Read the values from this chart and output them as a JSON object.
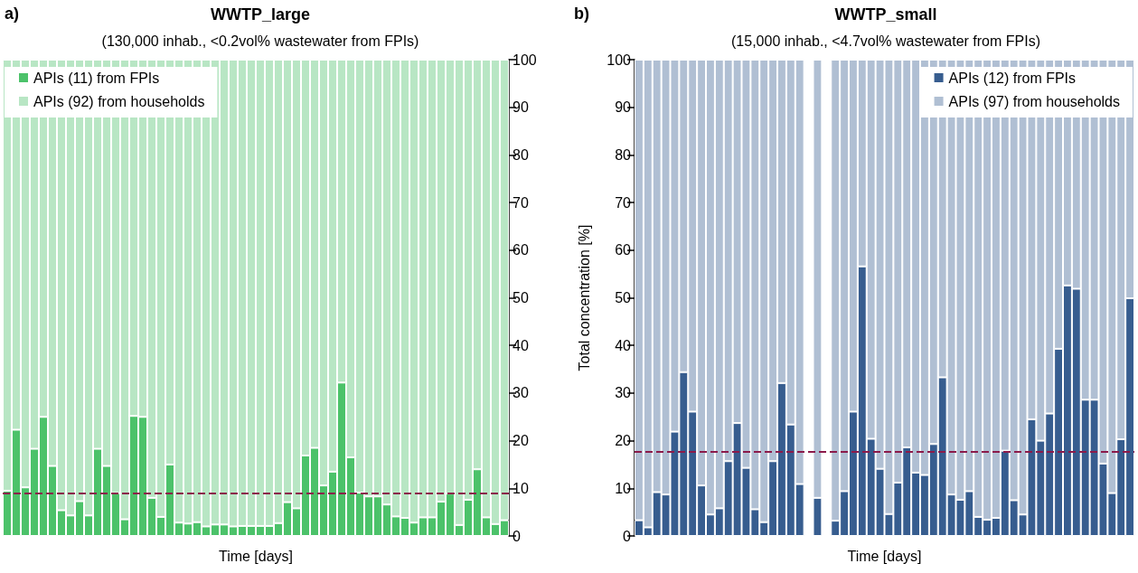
{
  "chart_data": [
    {
      "type": "bar",
      "title": "WWTP_large",
      "subtitle": "(130,000 inhab., <0.2vol% wastewater from FPIs)",
      "xlabel": "Time [days]",
      "annotations": [
        "a)"
      ],
      "stacked": true,
      "legend": "top left",
      "grid": false,
      "categories": [
        null,
        null,
        null,
        null,
        null,
        null,
        null,
        null,
        null,
        null,
        null,
        null,
        null,
        null,
        null,
        null,
        null,
        null,
        null,
        null,
        null,
        null,
        null,
        null,
        null,
        null,
        null,
        null,
        null,
        null,
        null,
        null,
        null,
        null,
        null,
        null,
        null,
        null,
        null,
        null,
        null,
        null,
        null,
        null,
        null,
        null,
        null,
        null,
        null,
        null,
        null,
        null,
        null,
        null,
        null,
        null
      ],
      "series": [
        {
          "name": "APIs (11) from FPIs",
          "color": "#4cc26a",
          "values": [
            9.5,
            22.3,
            10.2,
            18.3,
            25.0,
            14.7,
            5.4,
            4.3,
            7.3,
            4.3,
            18.3,
            14.7,
            9.0,
            3.5,
            25.2,
            25.0,
            8.0,
            4.0,
            15.0,
            2.8,
            2.6,
            2.9,
            2.0,
            2.4,
            2.4,
            2.0,
            2.1,
            2.1,
            2.1,
            2.1,
            2.7,
            7.1,
            5.8,
            16.9,
            18.5,
            10.6,
            13.5,
            32.2,
            16.5,
            9.1,
            8.3,
            8.3,
            6.6,
            4.1,
            3.8,
            2.8,
            3.9,
            3.9,
            7.2,
            8.9,
            2.3,
            7.6,
            14.0,
            3.9,
            2.5,
            3.3
          ]
        },
        {
          "name": "APIs (92) from households",
          "color": "#b8e6c4",
          "values": [
            90.5,
            77.7,
            89.8,
            81.7,
            75.0,
            85.3,
            94.6,
            95.7,
            92.7,
            95.7,
            81.7,
            85.3,
            91.0,
            96.5,
            74.8,
            75.0,
            92.0,
            96.0,
            85.0,
            97.2,
            97.4,
            97.1,
            98.0,
            97.6,
            97.6,
            98.0,
            97.9,
            97.9,
            97.9,
            97.9,
            97.3,
            92.9,
            94.2,
            83.1,
            81.5,
            89.4,
            86.5,
            67.8,
            83.5,
            90.9,
            91.7,
            91.7,
            93.4,
            95.9,
            96.2,
            97.2,
            96.1,
            96.1,
            92.8,
            91.1,
            97.7,
            92.4,
            86.0,
            96.1,
            97.5,
            96.7
          ]
        }
      ],
      "ylim": [
        0,
        100
      ],
      "yticks": [
        0,
        10,
        20,
        30,
        40,
        50,
        60,
        70,
        80,
        90,
        100
      ],
      "ref_lines": [
        {
          "axis": "y",
          "value": 9.0,
          "color": "#8b1a4a",
          "line_style": "dashed"
        }
      ]
    },
    {
      "type": "bar",
      "title": "WWTP_small",
      "subtitle": "(15,000 inhab., <4.7vol% wastewater from FPIs)",
      "xlabel": "Time [days]",
      "ylabel": "Total concentration [%]",
      "annotations": [
        "b)"
      ],
      "stacked": true,
      "legend": "top right",
      "grid": false,
      "categories": [
        null,
        null,
        null,
        null,
        null,
        null,
        null,
        null,
        null,
        null,
        null,
        null,
        null,
        null,
        null,
        null,
        null,
        null,
        null,
        null,
        null,
        null,
        null,
        null,
        null,
        null,
        null,
        null,
        null,
        null,
        null,
        null,
        null,
        null,
        null,
        null,
        null,
        null,
        null,
        null,
        null,
        null,
        null,
        null,
        null,
        null,
        null,
        null,
        null,
        null,
        null,
        null,
        null,
        null,
        null,
        null
      ],
      "series": [
        {
          "name": "APIs (12) from FPIs",
          "color": "#375d8f",
          "values": [
            3.3,
            1.8,
            9.2,
            8.7,
            21.9,
            34.4,
            26.1,
            10.6,
            4.5,
            5.8,
            15.7,
            23.7,
            14.3,
            5.6,
            2.9,
            15.7,
            32.1,
            23.4,
            10.9,
            null,
            8.0,
            null,
            3.2,
            9.4,
            26.1,
            56.6,
            20.4,
            14.1,
            4.6,
            11.2,
            18.6,
            13.3,
            12.8,
            19.3,
            33.3,
            8.7,
            7.6,
            9.4,
            4.0,
            3.4,
            3.8,
            17.9,
            7.5,
            4.5,
            24.5,
            20.0,
            25.7,
            39.3,
            52.6,
            51.9,
            28.6,
            28.6,
            15.2,
            9.0,
            20.3,
            49.9
          ]
        },
        {
          "name": "APIs (97) from households",
          "color": "#b0bfd3",
          "values": [
            96.7,
            98.2,
            90.8,
            91.3,
            78.1,
            65.6,
            73.9,
            89.4,
            95.5,
            94.2,
            84.3,
            76.3,
            85.7,
            94.4,
            97.1,
            84.3,
            67.9,
            76.6,
            89.1,
            null,
            92.0,
            null,
            96.8,
            90.6,
            73.9,
            43.4,
            79.6,
            85.9,
            95.4,
            88.8,
            81.4,
            86.7,
            87.2,
            80.7,
            66.7,
            91.3,
            92.4,
            90.6,
            96.0,
            96.6,
            96.2,
            82.1,
            92.5,
            95.5,
            75.5,
            80.0,
            74.3,
            60.7,
            47.4,
            48.1,
            71.4,
            71.4,
            84.8,
            91.0,
            79.7,
            50.1
          ]
        }
      ],
      "ylim": [
        0,
        100
      ],
      "yticks": [
        0,
        10,
        20,
        30,
        40,
        50,
        60,
        70,
        80,
        90,
        100
      ],
      "ref_lines": [
        {
          "axis": "y",
          "value": 17.7,
          "color": "#8b1a4a",
          "line_style": "dashed"
        }
      ]
    }
  ]
}
